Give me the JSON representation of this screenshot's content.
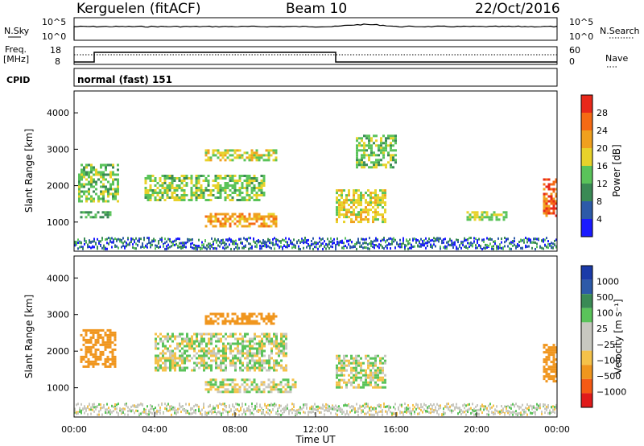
{
  "header": {
    "station": "Kerguelen (fitACF)",
    "beam": "Beam 10",
    "date": "22/Oct/2016"
  },
  "sky_panel": {
    "left_label": "N.Sky",
    "left_top_tick": "10^5",
    "left_bottom_tick": "10^0",
    "right_label": "N.Search",
    "right_top_tick": "10^5",
    "right_bottom_tick": "10^0"
  },
  "freq_panel": {
    "left_label_line1": "Freq.",
    "left_label_line2": "[MHz]",
    "left_top_tick": "18",
    "left_bottom_tick": "8",
    "right_label": "Nave",
    "right_top_tick": "60",
    "right_bottom_tick": "0"
  },
  "cpid": {
    "label": "CPID",
    "mode": "normal (fast) 151"
  },
  "colors": {
    "power_scale": [
      "#1a1aff",
      "#2d5aa8",
      "#3a8a55",
      "#5ac35a",
      "#e8d22a",
      "#f0a01e",
      "#f56a14",
      "#e8281a"
    ],
    "velocity_scale": [
      "#e01a1a",
      "#f55a14",
      "#f0961e",
      "#f5c24a",
      "#c8c8c0",
      "#c8c8c0",
      "#5ac35a",
      "#3a8a55",
      "#2d5aa8",
      "#1a3aa8"
    ]
  },
  "chart_data": [
    {
      "type": "heatmap",
      "panel": "power",
      "ylabel": "Slant Range [km]",
      "yticks": [
        "1000",
        "2000",
        "3000",
        "4000"
      ],
      "ylim": [
        200,
        4600
      ],
      "xlim_hours": [
        0,
        24
      ],
      "colorbar_label": "Power [dB]",
      "colorbar_ticks": [
        "4",
        "8",
        "12",
        "16",
        "20",
        "24",
        "28"
      ],
      "colorbar_range": [
        0,
        32
      ],
      "features": [
        {
          "t0": 0.2,
          "t1": 2.2,
          "r0": 1600,
          "r1": 2600,
          "value": 14
        },
        {
          "t0": 0.3,
          "t1": 1.8,
          "r0": 1150,
          "r1": 1300,
          "value": 12
        },
        {
          "t0": 3.5,
          "t1": 9.5,
          "r0": 1600,
          "r1": 2300,
          "value": 15
        },
        {
          "t0": 6.5,
          "t1": 10.0,
          "r0": 2700,
          "r1": 3000,
          "value": 18
        },
        {
          "t0": 6.5,
          "t1": 10.0,
          "r0": 900,
          "r1": 1250,
          "value": 22
        },
        {
          "t0": 13.0,
          "t1": 15.5,
          "r0": 1000,
          "r1": 1900,
          "value": 18
        },
        {
          "t0": 14.0,
          "t1": 16.0,
          "r0": 2500,
          "r1": 3400,
          "value": 14
        },
        {
          "t0": 19.5,
          "t1": 21.5,
          "r0": 1100,
          "r1": 1300,
          "value": 16
        },
        {
          "t0": 23.3,
          "t1": 24.0,
          "r0": 1200,
          "r1": 2200,
          "value": 26
        }
      ]
    },
    {
      "type": "heatmap",
      "panel": "velocity",
      "xlabel": "Time UT",
      "xticks": [
        "00:00",
        "04:00",
        "08:00",
        "12:00",
        "16:00",
        "20:00",
        "00:00"
      ],
      "ylabel": "Slant Range [km]",
      "yticks": [
        "1000",
        "2000",
        "3000",
        "4000"
      ],
      "ylim": [
        200,
        4600
      ],
      "xlim_hours": [
        0,
        24
      ],
      "colorbar_label": "Velocity [m s⁻¹]",
      "colorbar_ticks": [
        "1000",
        "500",
        "100",
        "25",
        "−25",
        "−100",
        "−500",
        "−1000"
      ],
      "colorbar_range": [
        -1000,
        1000
      ],
      "features": [
        {
          "t0": 0.3,
          "t1": 2.0,
          "r0": 1600,
          "r1": 2600,
          "value": -300
        },
        {
          "t0": 4.0,
          "t1": 10.5,
          "r0": 1500,
          "r1": 2500,
          "value": 0
        },
        {
          "t0": 6.5,
          "t1": 10.0,
          "r0": 2750,
          "r1": 3050,
          "value": -300
        },
        {
          "t0": 6.5,
          "t1": 11.0,
          "r0": 900,
          "r1": 1250,
          "value": 0
        },
        {
          "t0": 13.0,
          "t1": 15.5,
          "r0": 1000,
          "r1": 1900,
          "value": 0
        },
        {
          "t0": 23.3,
          "t1": 24.0,
          "r0": 1200,
          "r1": 2200,
          "value": -400
        }
      ]
    }
  ]
}
